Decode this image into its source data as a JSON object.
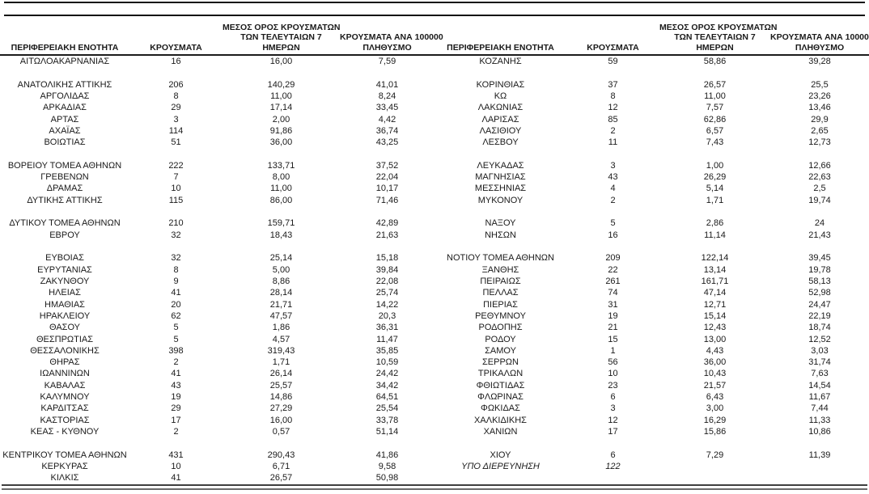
{
  "table": {
    "header": {
      "region": "ΠΕΡΙΦΕΡΕΙΑΚΗ ΕΝΟΤΗΤΑ",
      "cases": "ΚΡΟΥΣΜΑΤΑ",
      "avg7_lines": [
        "ΜΕΣΟΣ ΟΡΟΣ ΚΡΟΥΣΜΑΤΩΝ",
        "ΤΩΝ ΤΕΛΕΥΤΑΙΩΝ 7",
        "ΗΜΕΡΩΝ"
      ],
      "per100k_lines": [
        "ΚΡΟΥΣΜΑΤΑ ΑΝΑ 100000",
        "ΠΛΗΘΥΣΜΟ"
      ]
    },
    "rows": [
      {
        "cells": [
          "ΑΙΤΩΛΟΑΚΑΡΝΑΝΙΑΣ",
          "16",
          "16,00",
          "7,59",
          "ΚΟΖΑΝΗΣ",
          "59",
          "58,86",
          "39,28"
        ]
      },
      {
        "cells": [
          "",
          "",
          "",
          "",
          "",
          "",
          "",
          ""
        ]
      },
      {
        "cells": [
          "ΑΝΑΤΟΛΙΚΗΣ ΑΤΤΙΚΗΣ",
          "206",
          "140,29",
          "41,01",
          "ΚΟΡΙΝΘΙΑΣ",
          "37",
          "26,57",
          "25,5"
        ]
      },
      {
        "cells": [
          "ΑΡΓΟΛΙΔΑΣ",
          "8",
          "11,00",
          "8,24",
          "ΚΩ",
          "8",
          "11,00",
          "23,26"
        ]
      },
      {
        "cells": [
          "ΑΡΚΑΔΙΑΣ",
          "29",
          "17,14",
          "33,45",
          "ΛΑΚΩΝΙΑΣ",
          "12",
          "7,57",
          "13,46"
        ]
      },
      {
        "cells": [
          "ΑΡΤΑΣ",
          "3",
          "2,00",
          "4,42",
          "ΛΑΡΙΣΑΣ",
          "85",
          "62,86",
          "29,9"
        ]
      },
      {
        "cells": [
          "ΑΧΑΪΑΣ",
          "114",
          "91,86",
          "36,74",
          "ΛΑΣΙΘΙΟΥ",
          "2",
          "6,57",
          "2,65"
        ]
      },
      {
        "cells": [
          "ΒΟΙΩΤΙΑΣ",
          "51",
          "36,00",
          "43,25",
          "ΛΕΣΒΟΥ",
          "11",
          "7,43",
          "12,73"
        ]
      },
      {
        "cells": [
          "",
          "",
          "",
          "",
          "",
          "",
          "",
          ""
        ]
      },
      {
        "cells": [
          "ΒΟΡΕΙΟΥ ΤΟΜΕΑ ΑΘΗΝΩΝ",
          "222",
          "133,71",
          "37,52",
          "ΛΕΥΚΑΔΑΣ",
          "3",
          "1,00",
          "12,66"
        ]
      },
      {
        "cells": [
          "ΓΡΕΒΕΝΩΝ",
          "7",
          "8,00",
          "22,04",
          "ΜΑΓΝΗΣΙΑΣ",
          "43",
          "26,29",
          "22,63"
        ]
      },
      {
        "cells": [
          "ΔΡΑΜΑΣ",
          "10",
          "11,00",
          "10,17",
          "ΜΕΣΣΗΝΙΑΣ",
          "4",
          "5,14",
          "2,5"
        ]
      },
      {
        "cells": [
          "ΔΥΤΙΚΗΣ ΑΤΤΙΚΗΣ",
          "115",
          "86,00",
          "71,46",
          "ΜΥΚΟΝΟΥ",
          "2",
          "1,71",
          "19,74"
        ]
      },
      {
        "cells": [
          "",
          "",
          "",
          "",
          "",
          "",
          "",
          ""
        ]
      },
      {
        "cells": [
          "ΔΥΤΙΚΟΥ ΤΟΜΕΑ ΑΘΗΝΩΝ",
          "210",
          "159,71",
          "42,89",
          "ΝΑΞΟΥ",
          "5",
          "2,86",
          "24"
        ]
      },
      {
        "cells": [
          "ΕΒΡΟΥ",
          "32",
          "18,43",
          "21,63",
          "ΝΗΣΩΝ",
          "16",
          "11,14",
          "21,43"
        ]
      },
      {
        "cells": [
          "",
          "",
          "",
          "",
          "",
          "",
          "",
          ""
        ]
      },
      {
        "cells": [
          "ΕΥΒΟΙΑΣ",
          "32",
          "25,14",
          "15,18",
          "ΝΟΤΙΟΥ ΤΟΜΕΑ ΑΘΗΝΩΝ",
          "209",
          "122,14",
          "39,45"
        ]
      },
      {
        "cells": [
          "ΕΥΡΥΤΑΝΙΑΣ",
          "8",
          "5,00",
          "39,84",
          "ΞΑΝΘΗΣ",
          "22",
          "13,14",
          "19,78"
        ]
      },
      {
        "cells": [
          "ΖΑΚΥΝΘΟΥ",
          "9",
          "8,86",
          "22,08",
          "ΠΕΙΡΑΙΩΣ",
          "261",
          "161,71",
          "58,13"
        ]
      },
      {
        "cells": [
          "ΗΛΕΙΑΣ",
          "41",
          "28,14",
          "25,74",
          "ΠΕΛΛΑΣ",
          "74",
          "47,14",
          "52,98"
        ]
      },
      {
        "cells": [
          "ΗΜΑΘΙΑΣ",
          "20",
          "21,71",
          "14,22",
          "ΠΙΕΡΙΑΣ",
          "31",
          "12,71",
          "24,47"
        ]
      },
      {
        "cells": [
          "ΗΡΑΚΛΕΙΟΥ",
          "62",
          "47,57",
          "20,3",
          "ΡΕΘΥΜΝΟΥ",
          "19",
          "15,14",
          "22,19"
        ]
      },
      {
        "cells": [
          "ΘΑΣΟΥ",
          "5",
          "1,86",
          "36,31",
          "ΡΟΔΟΠΗΣ",
          "21",
          "12,43",
          "18,74"
        ]
      },
      {
        "cells": [
          "ΘΕΣΠΡΩΤΙΑΣ",
          "5",
          "4,57",
          "11,47",
          "ΡΟΔΟΥ",
          "15",
          "13,00",
          "12,52"
        ]
      },
      {
        "cells": [
          "ΘΕΣΣΑΛΟΝΙΚΗΣ",
          "398",
          "319,43",
          "35,85",
          "ΣΑΜΟΥ",
          "1",
          "4,43",
          "3,03"
        ]
      },
      {
        "cells": [
          "ΘΗΡΑΣ",
          "2",
          "1,71",
          "10,59",
          "ΣΕΡΡΩΝ",
          "56",
          "36,00",
          "31,74"
        ]
      },
      {
        "cells": [
          "ΙΩΑΝΝΙΝΩΝ",
          "41",
          "26,14",
          "24,42",
          "ΤΡΙΚΑΛΩΝ",
          "10",
          "10,43",
          "7,63"
        ]
      },
      {
        "cells": [
          "ΚΑΒΑΛΑΣ",
          "43",
          "25,57",
          "34,42",
          "ΦΘΙΩΤΙΔΑΣ",
          "23",
          "21,57",
          "14,54"
        ]
      },
      {
        "cells": [
          "ΚΑΛΥΜΝΟΥ",
          "19",
          "14,86",
          "64,51",
          "ΦΛΩΡΙΝΑΣ",
          "6",
          "6,43",
          "11,67"
        ]
      },
      {
        "cells": [
          "ΚΑΡΔΙΤΣΑΣ",
          "29",
          "27,29",
          "25,54",
          "ΦΩΚΙΔΑΣ",
          "3",
          "3,00",
          "7,44"
        ]
      },
      {
        "cells": [
          "ΚΑΣΤΟΡΙΑΣ",
          "17",
          "16,00",
          "33,78",
          "ΧΑΛΚΙΔΙΚΗΣ",
          "12",
          "16,29",
          "11,33"
        ]
      },
      {
        "cells": [
          "ΚΕΑΣ - ΚΥΘΝΟΥ",
          "2",
          "0,57",
          "51,14",
          "ΧΑΝΙΩΝ",
          "17",
          "15,86",
          "10,86"
        ]
      },
      {
        "cells": [
          "",
          "",
          "",
          "",
          "",
          "",
          "",
          ""
        ]
      },
      {
        "cells": [
          "ΚΕΝΤΡΙΚΟΥ ΤΟΜΕΑ ΑΘΗΝΩΝ",
          "431",
          "290,43",
          "41,86",
          "ΧΙΟΥ",
          "6",
          "7,29",
          "11,39"
        ]
      },
      {
        "cells": [
          "ΚΕΡΚΥΡΑΣ",
          "10",
          "6,71",
          "9,58",
          "ΥΠΟ ΔΙΕΡΕΥΝΗΣΗ",
          "122",
          "",
          ""
        ],
        "italic_right": true
      },
      {
        "cells": [
          "ΚΙΛΚΙΣ",
          "41",
          "26,57",
          "50,98",
          "",
          "",
          "",
          ""
        ]
      }
    ]
  }
}
